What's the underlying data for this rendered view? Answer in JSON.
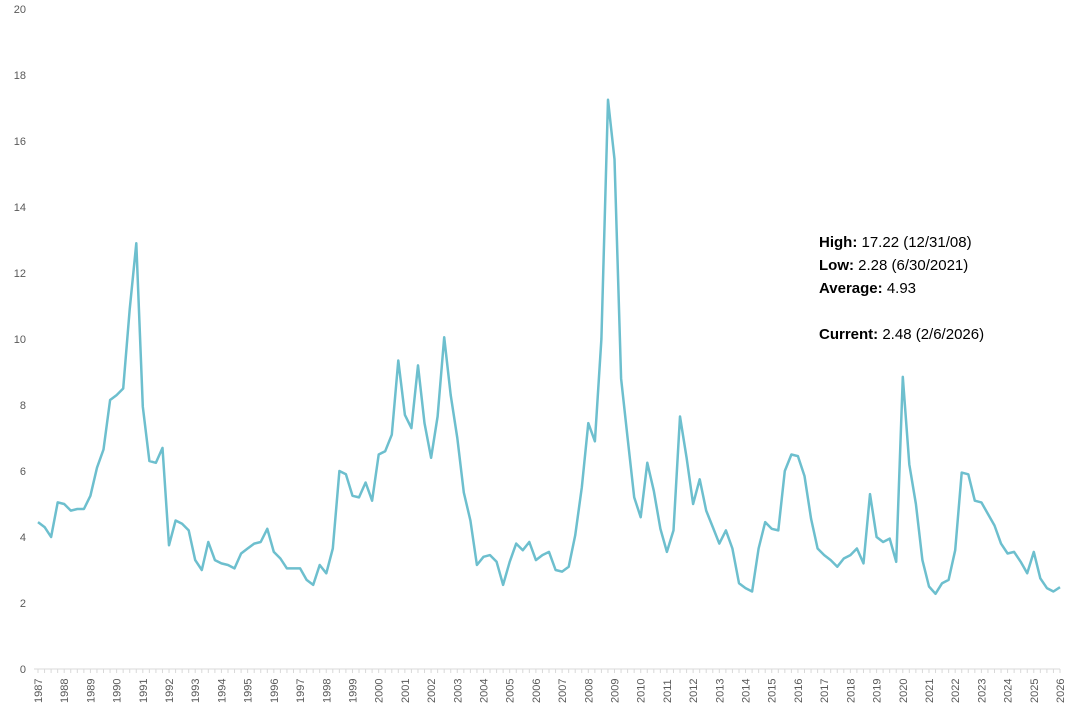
{
  "chart_data": {
    "type": "line",
    "title": "",
    "xlabel": "",
    "ylabel": "",
    "ylim": [
      0,
      20
    ],
    "yticks": [
      "0",
      "2",
      "4",
      "6",
      "8",
      "10",
      "12",
      "14",
      "16",
      "18",
      "20"
    ],
    "xticks": [
      "1987",
      "1988",
      "1989",
      "1990",
      "1991",
      "1992",
      "1993",
      "1994",
      "1995",
      "1996",
      "1997",
      "1998",
      "1999",
      "2000",
      "2001",
      "2002",
      "2003",
      "2004",
      "2005",
      "2006",
      "2007",
      "2008",
      "2009",
      "2010",
      "2011",
      "2012",
      "2013",
      "2014",
      "2015",
      "2016",
      "2017",
      "2018",
      "2019",
      "2020",
      "2021",
      "2022",
      "2023",
      "2024",
      "2025",
      "2026"
    ],
    "xlim": [
      1987.0,
      2026.0
    ],
    "grid": false,
    "line_color": "#6DBFCE",
    "series": [
      {
        "x": [
          1987.0,
          1987.25,
          1987.5,
          1987.75,
          1988.0,
          1988.25,
          1988.5,
          1988.75,
          1989.0,
          1989.25,
          1989.5,
          1989.75,
          1990.0,
          1990.25,
          1990.5,
          1990.75,
          1991.0,
          1991.25,
          1991.5,
          1991.75,
          1992.0,
          1992.25,
          1992.5,
          1992.75,
          1993.0,
          1993.25,
          1993.5,
          1993.75,
          1994.0,
          1994.25,
          1994.5,
          1994.75,
          1995.0,
          1995.25,
          1995.5,
          1995.75,
          1996.0,
          1996.25,
          1996.5,
          1996.75,
          1997.0,
          1997.25,
          1997.5,
          1997.75,
          1998.0,
          1998.25,
          1998.5,
          1998.75,
          1999.0,
          1999.25,
          1999.5,
          1999.75,
          2000.0,
          2000.25,
          2000.5,
          2000.75,
          2001.0,
          2001.25,
          2001.5,
          2001.75,
          2002.0,
          2002.25,
          2002.5,
          2002.75,
          2003.0,
          2003.25,
          2003.5,
          2003.75,
          2004.0,
          2004.25,
          2004.5,
          2004.75,
          2005.0,
          2005.25,
          2005.5,
          2005.75,
          2006.0,
          2006.25,
          2006.5,
          2006.75,
          2007.0,
          2007.25,
          2007.5,
          2007.75,
          2008.0,
          2008.25,
          2008.5,
          2008.75,
          2009.0,
          2009.25,
          2009.5,
          2009.75,
          2010.0,
          2010.25,
          2010.5,
          2010.75,
          2011.0,
          2011.25,
          2011.5,
          2011.75,
          2012.0,
          2012.25,
          2012.5,
          2012.75,
          2013.0,
          2013.25,
          2013.5,
          2013.75,
          2014.0,
          2014.25,
          2014.5,
          2014.75,
          2015.0,
          2015.25,
          2015.5,
          2015.75,
          2016.0,
          2016.25,
          2016.5,
          2016.75,
          2017.0,
          2017.25,
          2017.5,
          2017.75,
          2018.0,
          2018.25,
          2018.5,
          2018.75,
          2019.0,
          2019.25,
          2019.5,
          2019.75,
          2020.0,
          2020.25,
          2020.5,
          2020.75,
          2021.0,
          2021.25,
          2021.5,
          2021.75,
          2022.0,
          2022.25,
          2022.5,
          2022.75,
          2023.0,
          2023.25,
          2023.5,
          2023.75,
          2024.0,
          2024.25,
          2024.5,
          2024.75,
          2025.0,
          2025.25,
          2025.5,
          2025.75,
          2026.0
        ],
        "y": [
          4.45,
          4.3,
          4.0,
          5.05,
          5.0,
          4.8,
          4.85,
          4.85,
          5.25,
          6.1,
          6.65,
          8.15,
          8.3,
          8.5,
          10.9,
          12.9,
          7.95,
          6.3,
          6.25,
          6.7,
          3.75,
          4.5,
          4.4,
          4.2,
          3.3,
          3.0,
          3.85,
          3.3,
          3.2,
          3.15,
          3.05,
          3.5,
          3.65,
          3.8,
          3.85,
          4.25,
          3.55,
          3.35,
          3.05,
          3.05,
          3.05,
          2.7,
          2.55,
          3.15,
          2.9,
          3.65,
          6.0,
          5.9,
          5.25,
          5.2,
          5.65,
          5.1,
          6.5,
          6.6,
          7.1,
          9.35,
          7.7,
          7.3,
          9.2,
          7.45,
          6.4,
          7.65,
          10.05,
          8.3,
          7.0,
          5.35,
          4.5,
          3.15,
          3.4,
          3.45,
          3.25,
          2.55,
          3.25,
          3.8,
          3.6,
          3.85,
          3.3,
          3.45,
          3.55,
          3.0,
          2.95,
          3.1,
          4.05,
          5.5,
          7.45,
          6.9,
          10.0,
          17.25,
          15.45,
          8.8,
          7.0,
          5.2,
          4.6,
          6.25,
          5.4,
          4.25,
          3.55,
          4.2,
          7.65,
          6.4,
          5.0,
          5.75,
          4.8,
          4.3,
          3.8,
          4.2,
          3.65,
          2.6,
          2.45,
          2.35,
          3.65,
          4.45,
          4.25,
          4.2,
          6.0,
          6.5,
          6.45,
          5.85,
          4.55,
          3.65,
          3.45,
          3.3,
          3.1,
          3.35,
          3.45,
          3.65,
          3.2,
          5.3,
          4.0,
          3.85,
          3.95,
          3.25,
          8.85,
          6.2,
          5.0,
          3.3,
          2.5,
          2.28,
          2.6,
          2.7,
          3.6,
          5.95,
          5.9,
          5.1,
          5.05,
          4.7,
          4.35,
          3.8,
          3.5,
          3.55,
          3.25,
          2.9,
          3.55,
          2.75,
          2.45,
          2.35,
          2.48
        ]
      }
    ]
  },
  "annotation": {
    "high_label": "High:",
    "high_value": "17.22 (12/31/08)",
    "low_label": "Low:",
    "low_value": "2.28 (6/30/2021)",
    "average_label": "Average:",
    "average_value": "4.93",
    "current_label": "Current:",
    "current_value": "2.48 (2/6/2026)"
  }
}
